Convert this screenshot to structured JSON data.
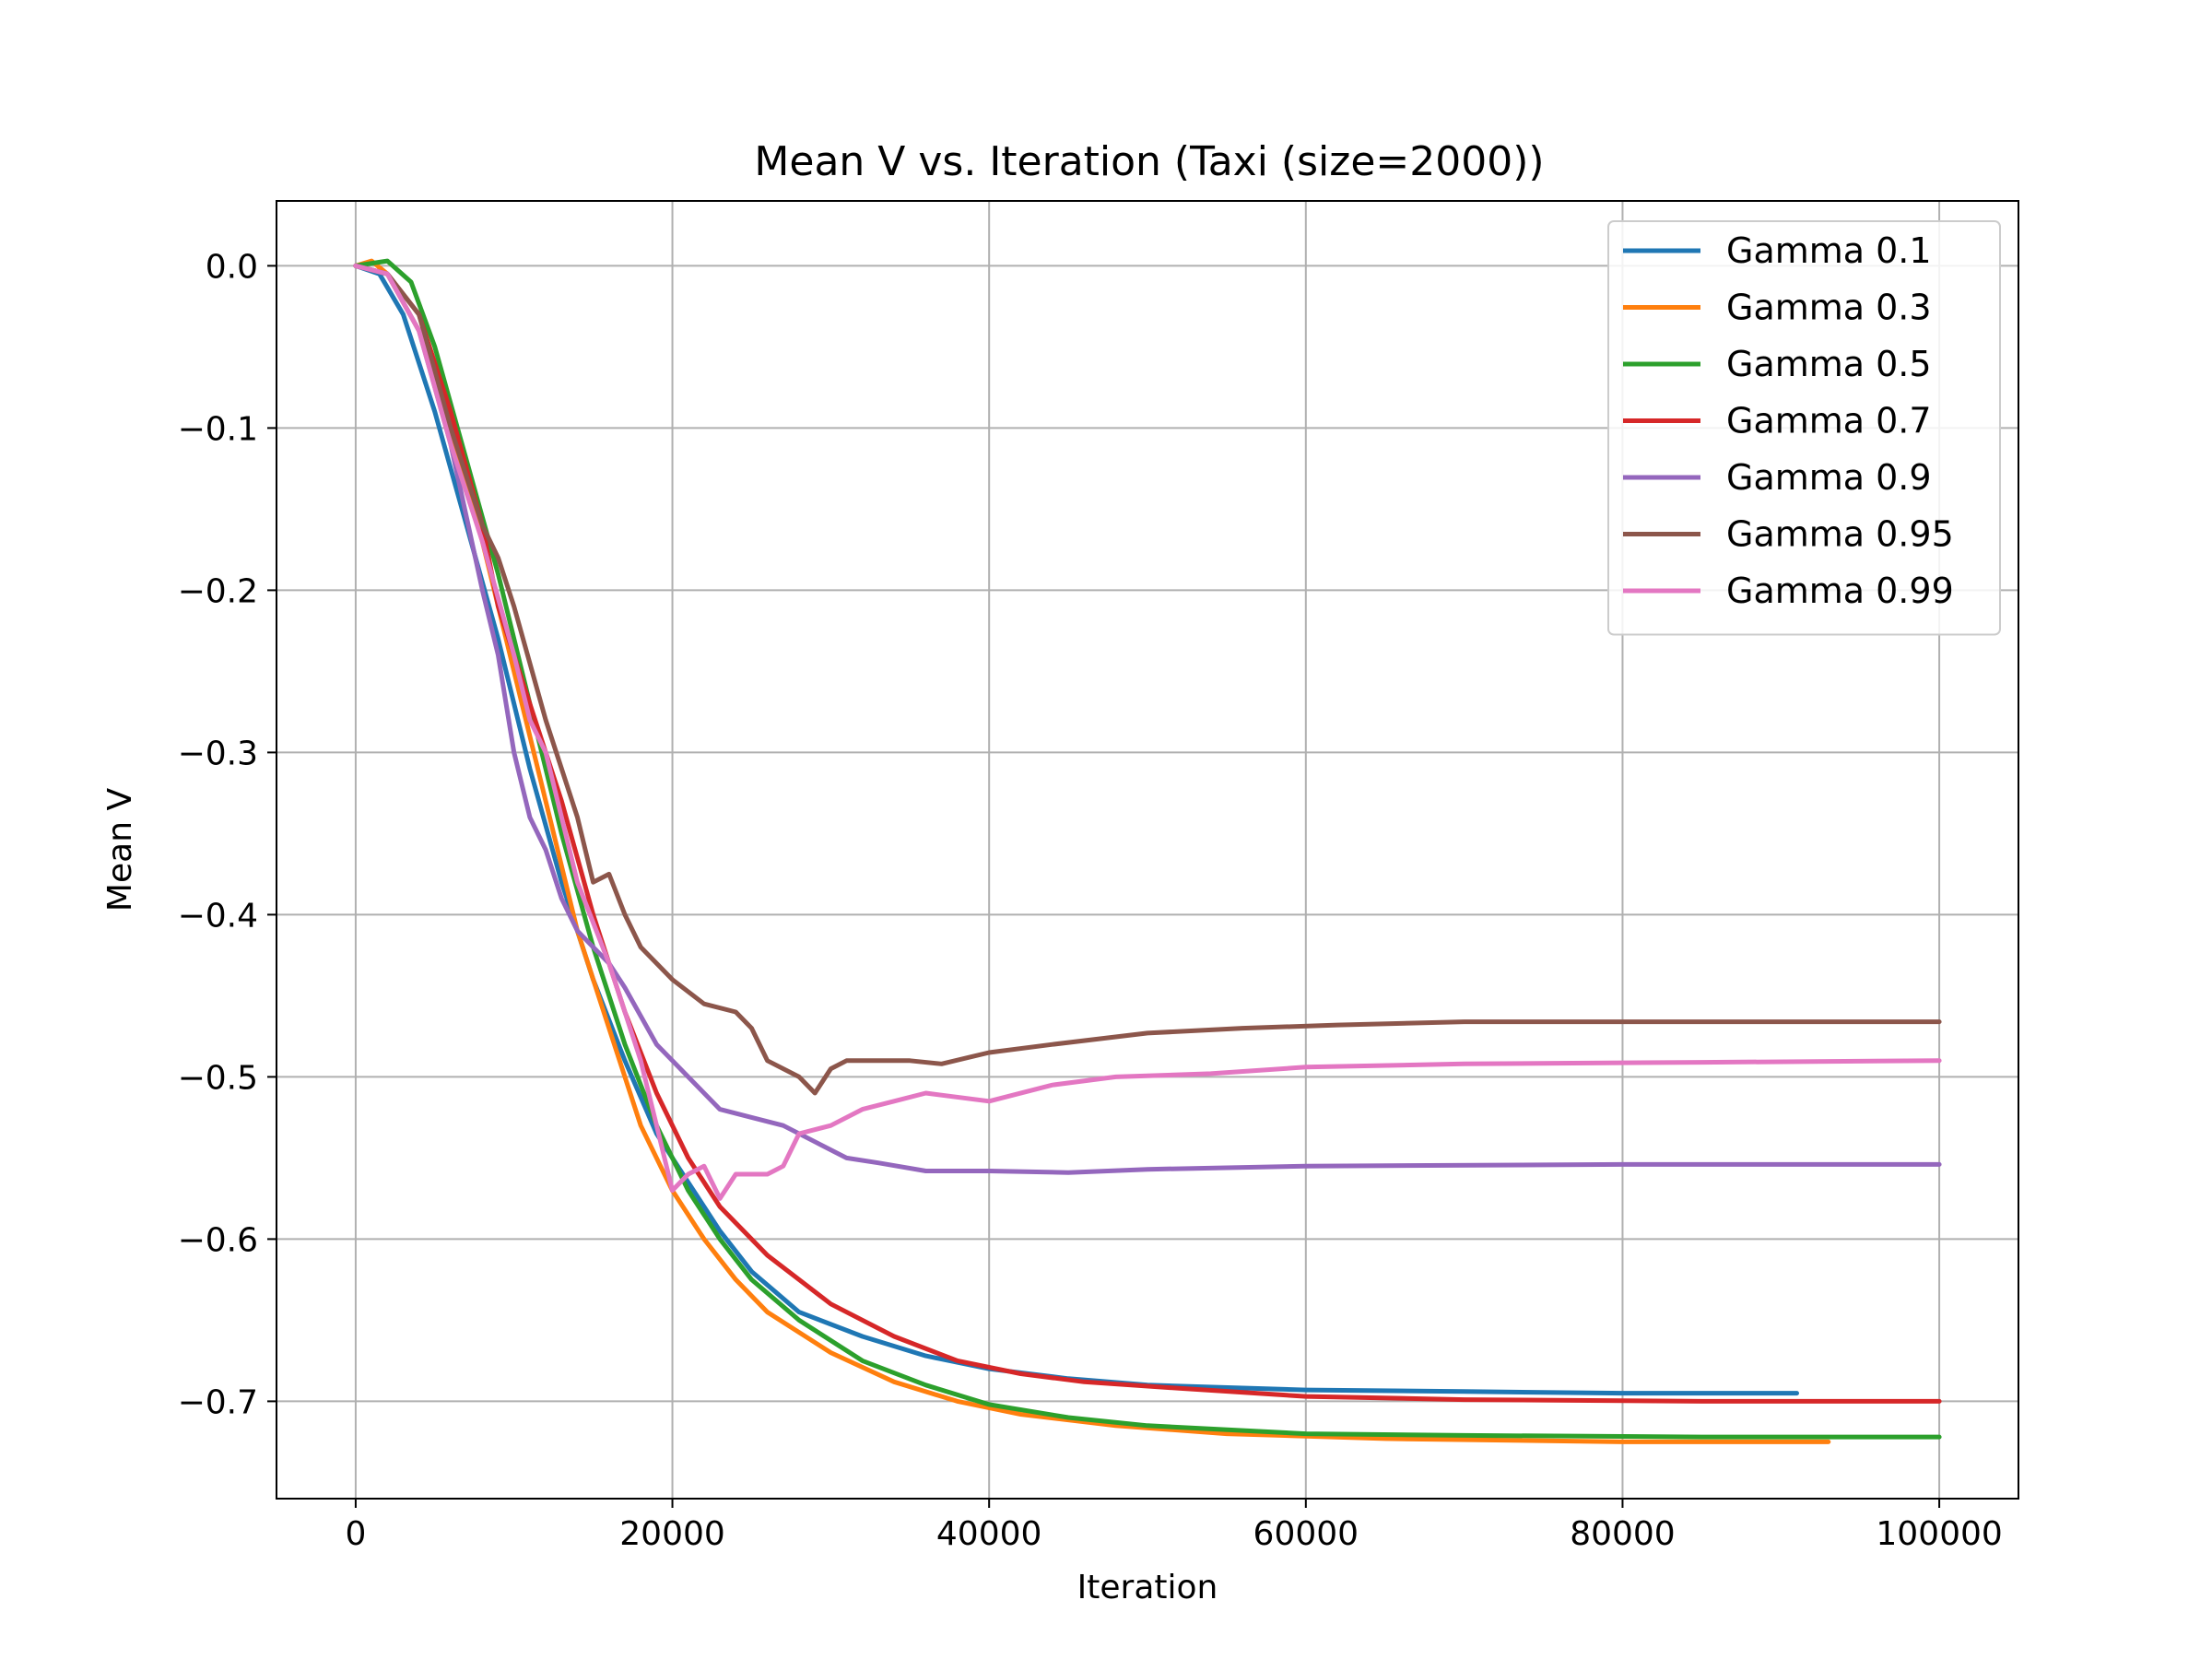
{
  "chart_data": {
    "type": "line",
    "title": "Mean V vs. Iteration (Taxi (size=2000))",
    "xlabel": "Iteration",
    "ylabel": "Mean V",
    "xlim": [
      -5000,
      105000
    ],
    "ylim": [
      -0.76,
      0.04
    ],
    "xticks": [
      0,
      20000,
      40000,
      60000,
      80000,
      100000
    ],
    "xtick_labels": [
      "0",
      "20000",
      "40000",
      "60000",
      "80000",
      "100000"
    ],
    "yticks": [
      0.0,
      -0.1,
      -0.2,
      -0.3,
      -0.4,
      -0.5,
      -0.6,
      -0.7
    ],
    "ytick_labels": [
      "0.0",
      "−0.1",
      "−0.2",
      "−0.3",
      "−0.4",
      "−0.5",
      "−0.6",
      "−0.7"
    ],
    "grid": true,
    "legend_position": "top-right",
    "series": [
      {
        "name": "Gamma 0.1",
        "color": "#1f77b4",
        "points": [
          [
            0,
            0
          ],
          [
            1500,
            -0.005
          ],
          [
            3000,
            -0.03
          ],
          [
            5000,
            -0.09
          ],
          [
            7000,
            -0.16
          ],
          [
            9000,
            -0.23
          ],
          [
            11000,
            -0.31
          ],
          [
            13000,
            -0.38
          ],
          [
            15000,
            -0.44
          ],
          [
            17000,
            -0.49
          ],
          [
            19000,
            -0.535
          ],
          [
            21000,
            -0.565
          ],
          [
            23000,
            -0.595
          ],
          [
            25000,
            -0.62
          ],
          [
            28000,
            -0.645
          ],
          [
            32000,
            -0.66
          ],
          [
            36000,
            -0.672
          ],
          [
            40000,
            -0.68
          ],
          [
            45000,
            -0.686
          ],
          [
            50000,
            -0.69
          ],
          [
            60000,
            -0.693
          ],
          [
            70000,
            -0.694
          ],
          [
            80000,
            -0.695
          ],
          [
            91000,
            -0.695
          ]
        ]
      },
      {
        "name": "Gamma 0.3",
        "color": "#ff7f0e",
        "points": [
          [
            0,
            0
          ],
          [
            1000,
            0.003
          ],
          [
            2000,
            -0.005
          ],
          [
            4000,
            -0.04
          ],
          [
            6000,
            -0.1
          ],
          [
            8000,
            -0.17
          ],
          [
            10000,
            -0.25
          ],
          [
            12000,
            -0.33
          ],
          [
            14000,
            -0.41
          ],
          [
            16000,
            -0.47
          ],
          [
            18000,
            -0.53
          ],
          [
            20000,
            -0.57
          ],
          [
            22000,
            -0.6
          ],
          [
            24000,
            -0.625
          ],
          [
            26000,
            -0.645
          ],
          [
            30000,
            -0.67
          ],
          [
            34000,
            -0.688
          ],
          [
            38000,
            -0.7
          ],
          [
            42000,
            -0.708
          ],
          [
            48000,
            -0.715
          ],
          [
            55000,
            -0.72
          ],
          [
            65000,
            -0.723
          ],
          [
            80000,
            -0.725
          ],
          [
            93000,
            -0.725
          ]
        ]
      },
      {
        "name": "Gamma 0.5",
        "color": "#2ca02c",
        "points": [
          [
            0,
            0
          ],
          [
            2000,
            0.003
          ],
          [
            3500,
            -0.01
          ],
          [
            5000,
            -0.05
          ],
          [
            7000,
            -0.12
          ],
          [
            9000,
            -0.19
          ],
          [
            11000,
            -0.27
          ],
          [
            13000,
            -0.35
          ],
          [
            15000,
            -0.42
          ],
          [
            17000,
            -0.48
          ],
          [
            19000,
            -0.53
          ],
          [
            21000,
            -0.57
          ],
          [
            23000,
            -0.6
          ],
          [
            25000,
            -0.625
          ],
          [
            28000,
            -0.65
          ],
          [
            32000,
            -0.675
          ],
          [
            36000,
            -0.69
          ],
          [
            40000,
            -0.702
          ],
          [
            45000,
            -0.71
          ],
          [
            50000,
            -0.715
          ],
          [
            60000,
            -0.72
          ],
          [
            70000,
            -0.721
          ],
          [
            85000,
            -0.722
          ],
          [
            100000,
            -0.722
          ]
        ]
      },
      {
        "name": "Gamma 0.7",
        "color": "#d62728",
        "points": [
          [
            0,
            0
          ],
          [
            2000,
            -0.005
          ],
          [
            4000,
            -0.03
          ],
          [
            6000,
            -0.09
          ],
          [
            8000,
            -0.16
          ],
          [
            9000,
            -0.21
          ],
          [
            11000,
            -0.27
          ],
          [
            13000,
            -0.33
          ],
          [
            15000,
            -0.4
          ],
          [
            17000,
            -0.46
          ],
          [
            19000,
            -0.51
          ],
          [
            21000,
            -0.55
          ],
          [
            23000,
            -0.58
          ],
          [
            26000,
            -0.61
          ],
          [
            30000,
            -0.64
          ],
          [
            34000,
            -0.66
          ],
          [
            38000,
            -0.675
          ],
          [
            42000,
            -0.683
          ],
          [
            46000,
            -0.688
          ],
          [
            52000,
            -0.692
          ],
          [
            60000,
            -0.697
          ],
          [
            70000,
            -0.699
          ],
          [
            85000,
            -0.7
          ],
          [
            100000,
            -0.7
          ]
        ]
      },
      {
        "name": "Gamma 0.9",
        "color": "#9467bd",
        "points": [
          [
            0,
            0
          ],
          [
            2000,
            -0.005
          ],
          [
            4000,
            -0.04
          ],
          [
            6000,
            -0.11
          ],
          [
            8000,
            -0.2
          ],
          [
            9000,
            -0.24
          ],
          [
            10000,
            -0.3
          ],
          [
            11000,
            -0.34
          ],
          [
            12000,
            -0.36
          ],
          [
            13000,
            -0.39
          ],
          [
            14000,
            -0.41
          ],
          [
            15000,
            -0.42
          ],
          [
            16000,
            -0.43
          ],
          [
            17000,
            -0.445
          ],
          [
            19000,
            -0.48
          ],
          [
            21000,
            -0.5
          ],
          [
            23000,
            -0.52
          ],
          [
            25000,
            -0.525
          ],
          [
            27000,
            -0.53
          ],
          [
            29000,
            -0.54
          ],
          [
            31000,
            -0.55
          ],
          [
            33000,
            -0.553
          ],
          [
            36000,
            -0.558
          ],
          [
            40000,
            -0.558
          ],
          [
            45000,
            -0.559
          ],
          [
            50000,
            -0.557
          ],
          [
            60000,
            -0.555
          ],
          [
            80000,
            -0.554
          ],
          [
            100000,
            -0.554
          ]
        ]
      },
      {
        "name": "Gamma 0.95",
        "color": "#8c564b",
        "points": [
          [
            0,
            0
          ],
          [
            2000,
            -0.005
          ],
          [
            4000,
            -0.03
          ],
          [
            6000,
            -0.1
          ],
          [
            8000,
            -0.16
          ],
          [
            9000,
            -0.18
          ],
          [
            10000,
            -0.21
          ],
          [
            12000,
            -0.28
          ],
          [
            14000,
            -0.34
          ],
          [
            15000,
            -0.38
          ],
          [
            16000,
            -0.375
          ],
          [
            17000,
            -0.4
          ],
          [
            18000,
            -0.42
          ],
          [
            20000,
            -0.44
          ],
          [
            22000,
            -0.455
          ],
          [
            24000,
            -0.46
          ],
          [
            25000,
            -0.47
          ],
          [
            26000,
            -0.49
          ],
          [
            28000,
            -0.5
          ],
          [
            29000,
            -0.51
          ],
          [
            30000,
            -0.495
          ],
          [
            31000,
            -0.49
          ],
          [
            33000,
            -0.49
          ],
          [
            35000,
            -0.49
          ],
          [
            37000,
            -0.492
          ],
          [
            40000,
            -0.485
          ],
          [
            44000,
            -0.48
          ],
          [
            50000,
            -0.473
          ],
          [
            56000,
            -0.47
          ],
          [
            62000,
            -0.468
          ],
          [
            70000,
            -0.466
          ],
          [
            85000,
            -0.466
          ],
          [
            100000,
            -0.466
          ]
        ]
      },
      {
        "name": "Gamma 0.99",
        "color": "#e377c2",
        "points": [
          [
            0,
            0
          ],
          [
            2000,
            -0.005
          ],
          [
            4000,
            -0.04
          ],
          [
            6000,
            -0.11
          ],
          [
            8000,
            -0.17
          ],
          [
            10000,
            -0.24
          ],
          [
            11000,
            -0.28
          ],
          [
            12000,
            -0.3
          ],
          [
            14000,
            -0.38
          ],
          [
            16000,
            -0.43
          ],
          [
            18000,
            -0.49
          ],
          [
            19000,
            -0.53
          ],
          [
            20000,
            -0.57
          ],
          [
            21000,
            -0.56
          ],
          [
            22000,
            -0.555
          ],
          [
            23000,
            -0.575
          ],
          [
            24000,
            -0.56
          ],
          [
            26000,
            -0.56
          ],
          [
            27000,
            -0.555
          ],
          [
            28000,
            -0.535
          ],
          [
            30000,
            -0.53
          ],
          [
            32000,
            -0.52
          ],
          [
            34000,
            -0.515
          ],
          [
            36000,
            -0.51
          ],
          [
            40000,
            -0.515
          ],
          [
            44000,
            -0.505
          ],
          [
            48000,
            -0.5
          ],
          [
            54000,
            -0.498
          ],
          [
            60000,
            -0.494
          ],
          [
            70000,
            -0.492
          ],
          [
            85000,
            -0.491
          ],
          [
            100000,
            -0.49
          ]
        ]
      }
    ]
  }
}
